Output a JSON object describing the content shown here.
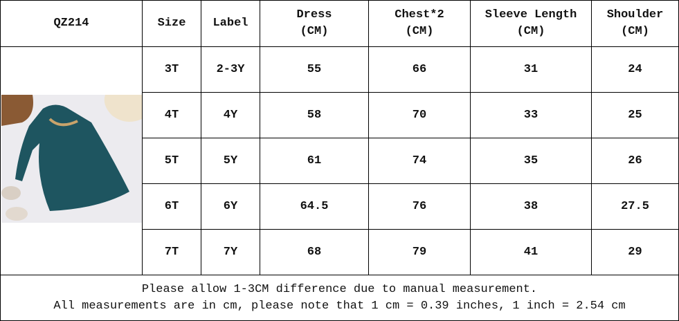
{
  "header": {
    "model": "QZ214",
    "columns": [
      {
        "name": "Size"
      },
      {
        "name": "Label"
      },
      {
        "name": "Dress",
        "unit": "(CM)"
      },
      {
        "name": "Chest*2",
        "unit": "(CM)"
      },
      {
        "name": "Sleeve Length",
        "unit": "(CM)"
      },
      {
        "name": "Shoulder",
        "unit": "(CM)"
      }
    ]
  },
  "table": {
    "rows": [
      [
        "3T",
        "2-3Y",
        55,
        66,
        31,
        24
      ],
      [
        "4T",
        "4Y",
        58,
        70,
        33,
        25
      ],
      [
        "5T",
        "5Y",
        61,
        74,
        35,
        26
      ],
      [
        "6T",
        "6Y",
        64.5,
        76,
        38,
        27.5
      ],
      [
        "7T",
        "7Y",
        68,
        79,
        41,
        29
      ]
    ]
  },
  "notes": [
    "Please allow 1-3CM difference due to manual measurement.",
    "All measurements are in cm, please note that 1 cm = 0.39 inches, 1 inch = 2.54 cm"
  ]
}
